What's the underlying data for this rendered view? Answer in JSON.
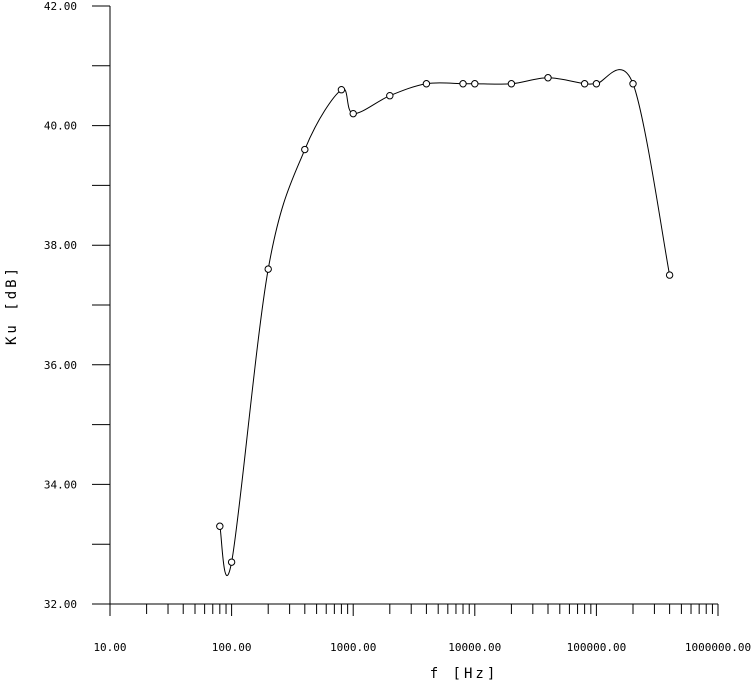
{
  "chart_data": {
    "type": "scatter",
    "xlabel": "f [Hz]",
    "ylabel": "Ku [dB]",
    "xscale": "log",
    "xlim": [
      10,
      1000000
    ],
    "ylim": [
      32,
      42
    ],
    "x_ticks": [
      "10.00",
      "100.00",
      "1000.00",
      "10000.00",
      "100000.00",
      "1000000.00"
    ],
    "y_ticks": [
      "32.00",
      "34.00",
      "36.00",
      "38.00",
      "40.00",
      "42.00"
    ],
    "grid": false,
    "marker": "open-circle",
    "line": "smooth",
    "series": [
      {
        "x": [
          80,
          100,
          200,
          400,
          800,
          1000,
          2000,
          4000,
          8000,
          10000,
          20000,
          40000,
          80000,
          100000,
          200000,
          400000
        ],
        "y": [
          33.3,
          32.7,
          37.6,
          39.6,
          40.6,
          40.2,
          40.5,
          40.7,
          40.7,
          40.7,
          40.7,
          40.8,
          40.7,
          40.7,
          40.7,
          37.5
        ]
      }
    ]
  }
}
